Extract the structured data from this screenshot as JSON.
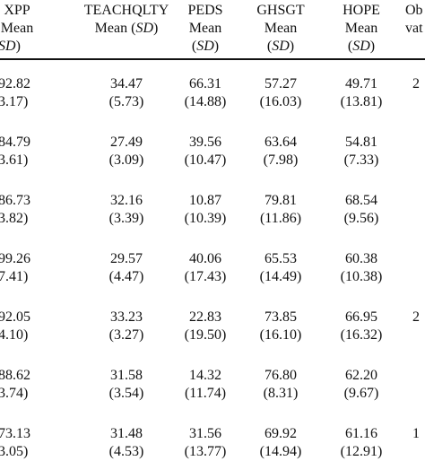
{
  "header": {
    "columns": [
      {
        "line1": "XPP",
        "line2": "Mean",
        "line3_sd": "SD",
        "line3_paren": true
      },
      {
        "line1": "TEACHQLTY",
        "line2": "Mean",
        "line3_sd": "SD",
        "line3_paren": true
      },
      {
        "line1": "PEDS",
        "line2": "Mean",
        "line3_sd": "SD",
        "line3_paren": true
      },
      {
        "line1": "GHSGT",
        "line2": "Mean",
        "line3_sd": "SD",
        "line3_paren": true
      },
      {
        "line1": "HOPE",
        "line2": "Mean",
        "line3_sd": "SD",
        "line3_paren": true
      },
      {
        "line1": "Ob",
        "line2": "vat",
        "line3_sd": "",
        "line3_paren": false
      }
    ]
  },
  "rows": [
    {
      "cells": [
        {
          "mean": "92.82",
          "sd": "3.17)"
        },
        {
          "mean": "34.47",
          "sd": "(5.73)"
        },
        {
          "mean": "66.31",
          "sd": "(14.88)"
        },
        {
          "mean": "57.27",
          "sd": "(16.03)"
        },
        {
          "mean": "49.71",
          "sd": "(13.81)"
        },
        {
          "mean": "2",
          "sd": ""
        }
      ]
    },
    {
      "cells": [
        {
          "mean": "84.79",
          "sd": "3.61)"
        },
        {
          "mean": "27.49",
          "sd": "(3.09)"
        },
        {
          "mean": "39.56",
          "sd": "(10.47)"
        },
        {
          "mean": "63.64",
          "sd": "(7.98)"
        },
        {
          "mean": "54.81",
          "sd": "(7.33)"
        },
        {
          "mean": "",
          "sd": ""
        }
      ]
    },
    {
      "cells": [
        {
          "mean": "86.73",
          "sd": "3.82)"
        },
        {
          "mean": "32.16",
          "sd": "(3.39)"
        },
        {
          "mean": "10.87",
          "sd": "(10.39)"
        },
        {
          "mean": "79.81",
          "sd": "(11.86)"
        },
        {
          "mean": "68.54",
          "sd": "(9.56)"
        },
        {
          "mean": "",
          "sd": ""
        }
      ]
    },
    {
      "cells": [
        {
          "mean": "99.26",
          "sd": "7.41)"
        },
        {
          "mean": "29.57",
          "sd": "(4.47)"
        },
        {
          "mean": "40.06",
          "sd": "(17.43)"
        },
        {
          "mean": "65.53",
          "sd": "(14.49)"
        },
        {
          "mean": "60.38",
          "sd": "(10.38)"
        },
        {
          "mean": "",
          "sd": ""
        }
      ]
    },
    {
      "cells": [
        {
          "mean": "92.05",
          "sd": "4.10)"
        },
        {
          "mean": "33.23",
          "sd": "(3.27)"
        },
        {
          "mean": "22.83",
          "sd": "(19.50)"
        },
        {
          "mean": "73.85",
          "sd": "(16.10)"
        },
        {
          "mean": "66.95",
          "sd": "(16.32)"
        },
        {
          "mean": "2",
          "sd": ""
        }
      ]
    },
    {
      "cells": [
        {
          "mean": "88.62",
          "sd": "3.74)"
        },
        {
          "mean": "31.58",
          "sd": "(3.54)"
        },
        {
          "mean": "14.32",
          "sd": "(11.74)"
        },
        {
          "mean": "76.80",
          "sd": "(8.31)"
        },
        {
          "mean": "62.20",
          "sd": "(9.67)"
        },
        {
          "mean": "",
          "sd": ""
        }
      ]
    },
    {
      "cells": [
        {
          "mean": "73.13",
          "sd": "3.05)"
        },
        {
          "mean": "31.48",
          "sd": "(4.53)"
        },
        {
          "mean": "31.56",
          "sd": "(13.77)"
        },
        {
          "mean": "69.92",
          "sd": "(14.94)"
        },
        {
          "mean": "61.16",
          "sd": "(12.91)"
        },
        {
          "mean": "1",
          "sd": ""
        }
      ]
    }
  ]
}
